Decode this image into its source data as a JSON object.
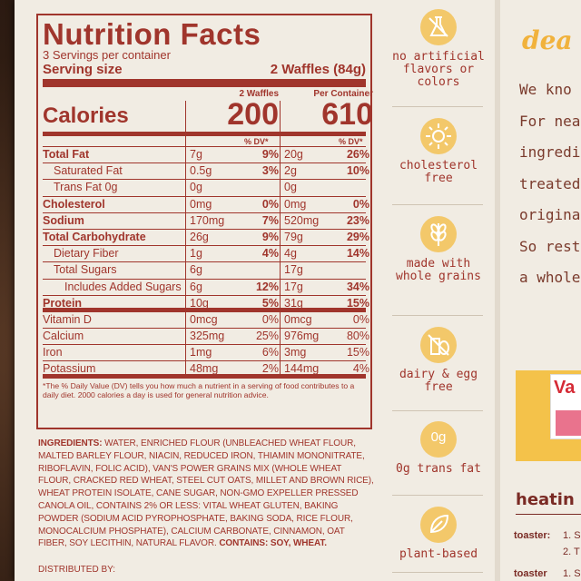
{
  "nutrition": {
    "title": "Nutrition Facts",
    "servings": "3 Servings per container",
    "serving_size_label": "Serving size",
    "serving_size_value": "2 Waffles (84g)",
    "calories_label": "Calories",
    "col1_head": "2 Waffles",
    "col2_head": "Per Container",
    "calories_1": "200",
    "calories_2": "610",
    "dv_head": "% DV*",
    "rows": [
      {
        "label": "Total Fat",
        "a1": "7g",
        "p1": "9%",
        "a2": "20g",
        "p2": "26%"
      },
      {
        "label": "Saturated Fat",
        "a1": "0.5g",
        "p1": "3%",
        "a2": "2g",
        "p2": "10%"
      },
      {
        "label": "Trans Fat 0g",
        "a1": "0g",
        "p1": "",
        "a2": "0g",
        "p2": ""
      },
      {
        "label": "Cholesterol",
        "a1": "0mg",
        "p1": "0%",
        "a2": "0mg",
        "p2": "0%"
      },
      {
        "label": "Sodium",
        "a1": "170mg",
        "p1": "7%",
        "a2": "520mg",
        "p2": "23%"
      },
      {
        "label": "Total Carbohydrate",
        "a1": "26g",
        "p1": "9%",
        "a2": "79g",
        "p2": "29%"
      },
      {
        "label": "Dietary Fiber",
        "a1": "1g",
        "p1": "4%",
        "a2": "4g",
        "p2": "14%"
      },
      {
        "label": "Total Sugars",
        "a1": "6g",
        "p1": "",
        "a2": "17g",
        "p2": ""
      },
      {
        "label": "Includes Added Sugars",
        "a1": "6g",
        "p1": "12%",
        "a2": "17g",
        "p2": "34%"
      },
      {
        "label": "Protein",
        "a1": "10g",
        "p1": "5%",
        "a2": "31g",
        "p2": "15%"
      },
      {
        "label": "Vitamin D",
        "a1": "0mcg",
        "p1": "0%",
        "a2": "0mcg",
        "p2": "0%"
      },
      {
        "label": "Calcium",
        "a1": "325mg",
        "p1": "25%",
        "a2": "976mg",
        "p2": "80%"
      },
      {
        "label": "Iron",
        "a1": "1mg",
        "p1": "6%",
        "a2": "3mg",
        "p2": "15%"
      },
      {
        "label": "Potassium",
        "a1": "48mg",
        "p1": "2%",
        "a2": "144mg",
        "p2": "4%"
      }
    ],
    "footnote": "*The % Daily Value (DV) tells you how much a nutrient in a serving of food contributes to a daily diet. 2000 calories a day is used for general nutrition advice."
  },
  "ingredients": {
    "label": "INGREDIENTS:",
    "text": " WATER, ENRICHED FLOUR (UNBLEACHED WHEAT FLOUR, MALTED BARLEY FLOUR, NIACIN, REDUCED IRON, THIAMIN MONONITRATE, RIBOFLAVIN, FOLIC ACID), VAN'S POWER GRAINS MIX (WHOLE WHEAT FLOUR, CRACKED RED WHEAT, STEEL CUT OATS, MILLET AND BROWN RICE), WHEAT PROTEIN ISOLATE, CANE SUGAR, NON-GMO EXPELLER PRESSED CANOLA OIL, CONTAINS 2% OR LESS: VITAL WHEAT GLUTEN, BAKING POWDER (SODIUM ACID PYROPHOSPHATE, BAKING SODA, RICE FLOUR, MONOCALCIUM PHOSPHATE), CALCIUM CARBONATE, CINNAMON, OAT FIBER, SOY LECITHIN, NATURAL FLAVOR. ",
    "contains": "CONTAINS: SOY, WHEAT.",
    "distributed": "DISTRIBUTED BY:"
  },
  "badges": [
    {
      "label": "no artificial flavors or colors",
      "icon": "no-flask-icon"
    },
    {
      "label": "cholesterol free",
      "icon": "sun-icon"
    },
    {
      "label": "made with whole grains",
      "icon": "wheat-icon"
    },
    {
      "label": "dairy & egg free",
      "icon": "no-milk-egg-icon"
    },
    {
      "label": "0g trans fat",
      "icon": "zero-g-icon",
      "icon_text": "0g"
    },
    {
      "label": "plant-based",
      "icon": "leaf-icon"
    }
  ],
  "right_panel": {
    "heading": "dea",
    "story": [
      "We kno",
      "For nea",
      "ingredie",
      "treated",
      "original",
      "So rest c",
      "a whole"
    ],
    "pkg_brand": "Va",
    "heating": "heatin",
    "steps": [
      {
        "method": "toaster:",
        "text": "1. S"
      },
      {
        "method": "",
        "text": "2. T"
      },
      {
        "method": "toaster",
        "text": "1. S"
      }
    ]
  },
  "colors": {
    "label_red": "#a0352c",
    "badge_yellow": "#f3c86a",
    "package_bg": "#f1ece3"
  }
}
